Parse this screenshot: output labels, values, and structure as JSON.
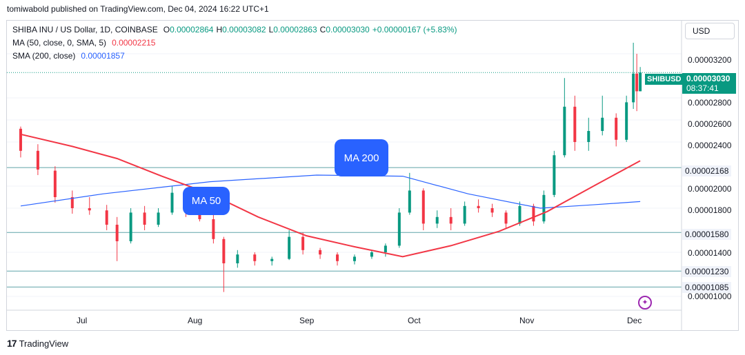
{
  "publisher": "tomiwabold published on TradingView.com, Dec 04, 2024 16:22 UTC+1",
  "legend": {
    "symbol": "SHIBA INU / US Dollar, 1D, COINBASE",
    "o_label": "O",
    "o_value": "0.00002864",
    "h_label": "H",
    "h_value": "0.00003082",
    "l_label": "L",
    "l_value": "0.00002863",
    "c_label": "C",
    "c_value": "0.00003030",
    "change": "+0.00000167 (+5.83%)",
    "ma50_label": "MA (50, close, 0, SMA, 5)",
    "ma50_value": "0.00002215",
    "sma200_label": "SMA (200, close)",
    "sma200_value": "0.00001857"
  },
  "currency_button": "USD",
  "price_axis": [
    "0.00003200",
    "0.00002800",
    "0.00002600",
    "0.00002400",
    "0.00002000",
    "0.00001800",
    "0.00001400",
    "0.00001000"
  ],
  "level_badges": [
    "0.00002168",
    "0.00001580",
    "0.00001230",
    "0.00001085"
  ],
  "current": {
    "symbol": "SHIBUSD",
    "price": "0.00003030",
    "countdown": "08:37:41"
  },
  "time_axis": [
    "Jul",
    "Aug",
    "Sep",
    "Oct",
    "Nov",
    "Dec"
  ],
  "callouts": {
    "ma50": "MA 50",
    "ma200": "MA 200"
  },
  "footer_logo": "TradingView",
  "colors": {
    "up": "#089981",
    "down": "#f23645",
    "ma50": "#f23645",
    "sma200": "#2962ff",
    "level": "#5fa3a8"
  },
  "chart_data": {
    "type": "candlestick",
    "price_range": [
      9.5e-06,
      3.45e-05
    ],
    "horizontal_levels": [
      2.168e-05,
      1.58e-05,
      1.23e-05,
      1.085e-05
    ],
    "ma50": [
      {
        "d": "2024-06-07",
        "v": 2.47e-05
      },
      {
        "d": "2024-06-22",
        "v": 2.36e-05
      },
      {
        "d": "2024-07-05",
        "v": 2.25e-05
      },
      {
        "d": "2024-07-18",
        "v": 2.09e-05
      },
      {
        "d": "2024-08-01",
        "v": 1.93e-05
      },
      {
        "d": "2024-08-15",
        "v": 1.72e-05
      },
      {
        "d": "2024-08-29",
        "v": 1.55e-05
      },
      {
        "d": "2024-09-12",
        "v": 1.45e-05
      },
      {
        "d": "2024-09-26",
        "v": 1.36e-05
      },
      {
        "d": "2024-10-10",
        "v": 1.46e-05
      },
      {
        "d": "2024-10-24",
        "v": 1.59e-05
      },
      {
        "d": "2024-11-07",
        "v": 1.77e-05
      },
      {
        "d": "2024-11-21",
        "v": 2.01e-05
      },
      {
        "d": "2024-12-04",
        "v": 2.23e-05
      }
    ],
    "sma200": [
      {
        "d": "2024-06-07",
        "v": 1.82e-05
      },
      {
        "d": "2024-07-01",
        "v": 1.93e-05
      },
      {
        "d": "2024-08-01",
        "v": 2.04e-05
      },
      {
        "d": "2024-09-01",
        "v": 2.1e-05
      },
      {
        "d": "2024-09-26",
        "v": 2.09e-05
      },
      {
        "d": "2024-10-15",
        "v": 1.93e-05
      },
      {
        "d": "2024-11-05",
        "v": 1.8e-05
      },
      {
        "d": "2024-11-20",
        "v": 1.83e-05
      },
      {
        "d": "2024-12-04",
        "v": 1.86e-05
      }
    ],
    "candles": [
      {
        "d": "2024-06-07",
        "o": 2.52e-05,
        "h": 2.54e-05,
        "l": 2.26e-05,
        "c": 2.32e-05
      },
      {
        "d": "2024-06-12",
        "o": 2.32e-05,
        "h": 2.38e-05,
        "l": 2.1e-05,
        "c": 2.15e-05
      },
      {
        "d": "2024-06-17",
        "o": 2.14e-05,
        "h": 2.18e-05,
        "l": 1.85e-05,
        "c": 1.9e-05
      },
      {
        "d": "2024-06-22",
        "o": 1.9e-05,
        "h": 1.96e-05,
        "l": 1.75e-05,
        "c": 1.8e-05
      },
      {
        "d": "2024-06-27",
        "o": 1.8e-05,
        "h": 1.9e-05,
        "l": 1.74e-05,
        "c": 1.78e-05
      },
      {
        "d": "2024-07-02",
        "o": 1.78e-05,
        "h": 1.83e-05,
        "l": 1.6e-05,
        "c": 1.65e-05
      },
      {
        "d": "2024-07-05",
        "o": 1.65e-05,
        "h": 1.72e-05,
        "l": 1.32e-05,
        "c": 1.5e-05
      },
      {
        "d": "2024-07-09",
        "o": 1.5e-05,
        "h": 1.8e-05,
        "l": 1.48e-05,
        "c": 1.76e-05
      },
      {
        "d": "2024-07-13",
        "o": 1.76e-05,
        "h": 1.82e-05,
        "l": 1.6e-05,
        "c": 1.65e-05
      },
      {
        "d": "2024-07-17",
        "o": 1.65e-05,
        "h": 1.8e-05,
        "l": 1.63e-05,
        "c": 1.76e-05
      },
      {
        "d": "2024-07-21",
        "o": 1.76e-05,
        "h": 2e-05,
        "l": 1.74e-05,
        "c": 1.94e-05
      },
      {
        "d": "2024-07-25",
        "o": 1.94e-05,
        "h": 1.98e-05,
        "l": 1.72e-05,
        "c": 1.78e-05
      },
      {
        "d": "2024-07-29",
        "o": 1.78e-05,
        "h": 1.86e-05,
        "l": 1.68e-05,
        "c": 1.7e-05
      },
      {
        "d": "2024-08-02",
        "o": 1.7e-05,
        "h": 1.74e-05,
        "l": 1.48e-05,
        "c": 1.52e-05
      },
      {
        "d": "2024-08-05",
        "o": 1.52e-05,
        "h": 1.54e-05,
        "l": 1.04e-05,
        "c": 1.3e-05
      },
      {
        "d": "2024-08-09",
        "o": 1.3e-05,
        "h": 1.42e-05,
        "l": 1.26e-05,
        "c": 1.38e-05
      },
      {
        "d": "2024-08-14",
        "o": 1.38e-05,
        "h": 1.4e-05,
        "l": 1.28e-05,
        "c": 1.32e-05
      },
      {
        "d": "2024-08-19",
        "o": 1.32e-05,
        "h": 1.36e-05,
        "l": 1.28e-05,
        "c": 1.34e-05
      },
      {
        "d": "2024-08-24",
        "o": 1.34e-05,
        "h": 1.6e-05,
        "l": 1.33e-05,
        "c": 1.54e-05
      },
      {
        "d": "2024-08-28",
        "o": 1.54e-05,
        "h": 1.58e-05,
        "l": 1.38e-05,
        "c": 1.42e-05
      },
      {
        "d": "2024-09-02",
        "o": 1.42e-05,
        "h": 1.44e-05,
        "l": 1.34e-05,
        "c": 1.38e-05
      },
      {
        "d": "2024-09-07",
        "o": 1.38e-05,
        "h": 1.4e-05,
        "l": 1.28e-05,
        "c": 1.32e-05
      },
      {
        "d": "2024-09-12",
        "o": 1.32e-05,
        "h": 1.38e-05,
        "l": 1.29e-05,
        "c": 1.36e-05
      },
      {
        "d": "2024-09-17",
        "o": 1.36e-05,
        "h": 1.42e-05,
        "l": 1.34e-05,
        "c": 1.4e-05
      },
      {
        "d": "2024-09-21",
        "o": 1.4e-05,
        "h": 1.48e-05,
        "l": 1.36e-05,
        "c": 1.46e-05
      },
      {
        "d": "2024-09-25",
        "o": 1.46e-05,
        "h": 1.8e-05,
        "l": 1.44e-05,
        "c": 1.76e-05
      },
      {
        "d": "2024-09-28",
        "o": 1.76e-05,
        "h": 2.12e-05,
        "l": 1.74e-05,
        "c": 1.96e-05
      },
      {
        "d": "2024-10-02",
        "o": 1.96e-05,
        "h": 1.98e-05,
        "l": 1.6e-05,
        "c": 1.66e-05
      },
      {
        "d": "2024-10-06",
        "o": 1.66e-05,
        "h": 1.78e-05,
        "l": 1.62e-05,
        "c": 1.72e-05
      },
      {
        "d": "2024-10-10",
        "o": 1.72e-05,
        "h": 1.8e-05,
        "l": 1.6e-05,
        "c": 1.66e-05
      },
      {
        "d": "2024-10-14",
        "o": 1.66e-05,
        "h": 1.86e-05,
        "l": 1.64e-05,
        "c": 1.82e-05
      },
      {
        "d": "2024-10-18",
        "o": 1.82e-05,
        "h": 1.88e-05,
        "l": 1.76e-05,
        "c": 1.8e-05
      },
      {
        "d": "2024-10-22",
        "o": 1.8e-05,
        "h": 1.84e-05,
        "l": 1.72e-05,
        "c": 1.76e-05
      },
      {
        "d": "2024-10-26",
        "o": 1.76e-05,
        "h": 1.78e-05,
        "l": 1.62e-05,
        "c": 1.66e-05
      },
      {
        "d": "2024-10-30",
        "o": 1.66e-05,
        "h": 1.86e-05,
        "l": 1.64e-05,
        "c": 1.82e-05
      },
      {
        "d": "2024-11-03",
        "o": 1.82e-05,
        "h": 1.84e-05,
        "l": 1.64e-05,
        "c": 1.68e-05
      },
      {
        "d": "2024-11-06",
        "o": 1.68e-05,
        "h": 1.96e-05,
        "l": 1.66e-05,
        "c": 1.92e-05
      },
      {
        "d": "2024-11-09",
        "o": 1.92e-05,
        "h": 2.32e-05,
        "l": 1.9e-05,
        "c": 2.28e-05
      },
      {
        "d": "2024-11-12",
        "o": 2.28e-05,
        "h": 2.98e-05,
        "l": 2.26e-05,
        "c": 2.72e-05
      },
      {
        "d": "2024-11-15",
        "o": 2.72e-05,
        "h": 2.82e-05,
        "l": 2.32e-05,
        "c": 2.4e-05
      },
      {
        "d": "2024-11-19",
        "o": 2.4e-05,
        "h": 2.62e-05,
        "l": 2.32e-05,
        "c": 2.5e-05
      },
      {
        "d": "2024-11-23",
        "o": 2.5e-05,
        "h": 2.82e-05,
        "l": 2.46e-05,
        "c": 2.62e-05
      },
      {
        "d": "2024-11-27",
        "o": 2.62e-05,
        "h": 2.66e-05,
        "l": 2.36e-05,
        "c": 2.42e-05
      },
      {
        "d": "2024-11-30",
        "o": 2.42e-05,
        "h": 2.82e-05,
        "l": 2.4e-05,
        "c": 2.76e-05
      },
      {
        "d": "2024-12-02",
        "o": 2.76e-05,
        "h": 3.3e-05,
        "l": 2.7e-05,
        "c": 3.02e-05
      },
      {
        "d": "2024-12-03",
        "o": 3.02e-05,
        "h": 3.2e-05,
        "l": 2.68e-05,
        "c": 2.86e-05
      },
      {
        "d": "2024-12-04",
        "o": 2.86e-05,
        "h": 3.08e-05,
        "l": 2.86e-05,
        "c": 3.03e-05
      }
    ]
  }
}
